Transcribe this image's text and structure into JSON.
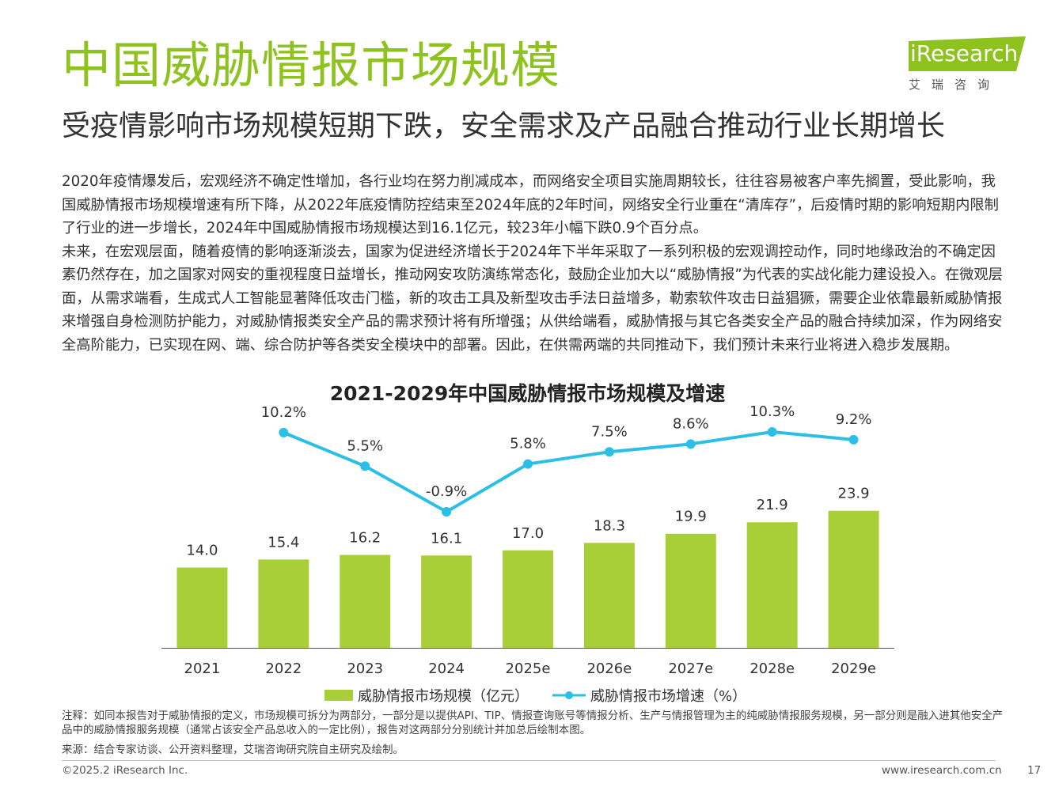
{
  "header": {
    "title": "中国威胁情报市场规模",
    "subtitle": "受疫情影响市场规模短期下跌，安全需求及产品融合推动行业长期增长"
  },
  "logo": {
    "brand": "iResearch",
    "cn": "艾瑞咨询",
    "color": "#8dc21f"
  },
  "body": {
    "p1": "2020年疫情爆发后，宏观经济不确定性增加，各行业均在努力削减成本，而网络安全项目实施周期较长，往往容易被客户率先搁置，受此影响，我国威胁情报市场规模增速有所下降，从2022年底疫情防控结束至2024年底的2年时间，网络安全行业重在“清库存”，后疫情时期的影响短期内限制了行业的进一步增长，2024年中国威胁情报市场规模达到16.1亿元，较23年小幅下跌0.9个百分点。",
    "p2": "未来，在宏观层面，随着疫情的影响逐渐淡去，国家为促进经济增长于2024年下半年采取了一系列积极的宏观调控动作，同时地缘政治的不确定因素仍然存在，加之国家对网安的重视程度日益增长，推动网安攻防演练常态化，鼓励企业加大以“威胁情报”为代表的实战化能力建设投入。在微观层面，从需求端看，生成式人工智能显著降低攻击门槛，新的攻击工具及新型攻击手法日益增多，勒索软件攻击日益猖獗，需要企业依靠最新威胁情报来增强自身检测防护能力，对威胁情报类安全产品的需求预计将有所增强；从供给端看，威胁情报与其它各类安全产品的融合持续加深，作为网络安全高阶能力，已实现在网、端、综合防护等各类安全模块中的部署。因此，在供需两端的共同推动下，我们预计未来行业将进入稳步发展期。"
  },
  "chart_data": {
    "type": "bar",
    "title": "2021-2029年中国威胁情报市场规模及增速",
    "categories": [
      "2021",
      "2022",
      "2023",
      "2024",
      "2025e",
      "2026e",
      "2027e",
      "2028e",
      "2029e"
    ],
    "series": [
      {
        "name": "威胁情报市场规模（亿元）",
        "type": "bar",
        "color": "#a9cf38",
        "values": [
          14.0,
          15.4,
          16.2,
          16.1,
          17.0,
          18.3,
          19.9,
          21.9,
          23.9
        ],
        "labels": [
          "14.0",
          "15.4",
          "16.2",
          "16.1",
          "17.0",
          "18.3",
          "19.9",
          "21.9",
          "23.9"
        ]
      },
      {
        "name": "威胁情报市场增速（%）",
        "type": "line",
        "color": "#2bbfe8",
        "values": [
          null,
          10.2,
          5.5,
          -0.9,
          5.8,
          7.5,
          8.6,
          10.3,
          9.2
        ],
        "labels": [
          "",
          "10.2%",
          "5.5%",
          "-0.9%",
          "5.8%",
          "7.5%",
          "8.6%",
          "10.3%",
          "9.2%"
        ]
      }
    ],
    "legend": "bottom"
  },
  "footnotes": {
    "note": "注释：如同本报告对于威胁情报的定义，市场规模可拆分为两部分，一部分是以提供API、TIP、情报查询账号等情报分析、生产与情报管理为主的纯威胁情报服务规模，另一部分则是融入进其他安全产品中的威胁情报服务规模（通常占该安全产品总收入的一定比例），报告对这两部分分别统计并加总后绘制本图。",
    "source": "来源：结合专家访谈、公开资料整理，艾瑞咨询研究院自主研究及绘制。"
  },
  "footer": {
    "copyright": "©2025.2 iResearch Inc.",
    "url": "www.iresearch.com.cn",
    "page": "17"
  }
}
